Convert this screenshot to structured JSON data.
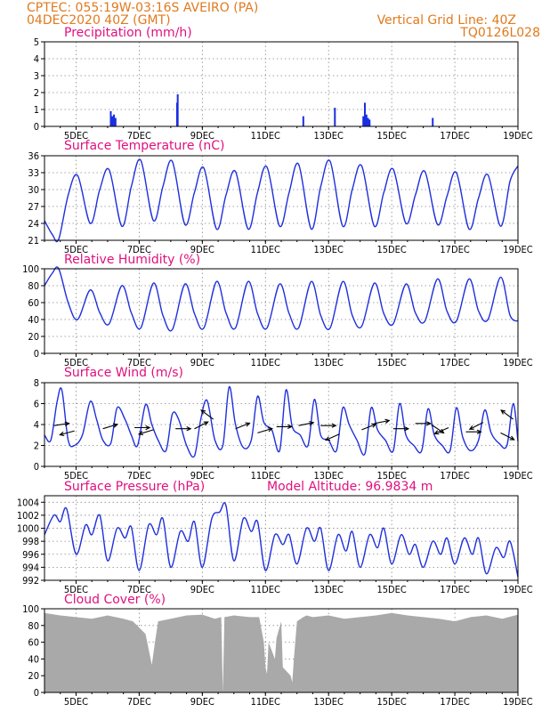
{
  "header": {
    "line1": "CPTEC:   055:19W-03:16S   AVEIRO (PA)",
    "line2": "04DEC2020 40Z (GMT)",
    "right1": "Vertical Grid Line: 40Z",
    "right2": "TQ0126L028"
  },
  "colors": {
    "header": "#e07a1e",
    "panel_title": "#e0107e",
    "series_line": "#1f2fdc",
    "precip_bar": "#1a2ee0",
    "cloud_fill": "#a9a9a9",
    "wind_arrow": "#000000"
  },
  "chart_data": [
    {
      "id": "precipitation",
      "type": "bar",
      "title": "Precipitation (mm/h)",
      "ylim": [
        0,
        5
      ],
      "yticks": [
        0,
        1,
        2,
        3,
        4,
        5
      ],
      "xlim": [
        4.0,
        19.0
      ],
      "xticks": [
        5,
        7,
        9,
        11,
        13,
        15,
        17,
        19
      ],
      "xticklabels": [
        "5DEC",
        "7DEC",
        "9DEC",
        "11DEC",
        "13DEC",
        "15DEC",
        "17DEC",
        "19DEC"
      ],
      "grid": true,
      "x": [
        6.1,
        6.15,
        6.2,
        6.25,
        8.2,
        8.22,
        12.2,
        13.2,
        14.1,
        14.15,
        14.2,
        14.25,
        14.3,
        16.3
      ],
      "values": [
        0.9,
        0.6,
        0.7,
        0.5,
        1.4,
        1.9,
        0.6,
        1.1,
        0.6,
        1.4,
        0.7,
        0.5,
        0.4,
        0.5
      ]
    },
    {
      "id": "temperature",
      "type": "line",
      "title": "Surface Temperature (nC)",
      "ylim": [
        21,
        36
      ],
      "yticks": [
        21,
        24,
        27,
        30,
        33,
        36
      ],
      "xlim": [
        4.0,
        19.0
      ],
      "xticks": [
        5,
        7,
        9,
        11,
        13,
        15,
        17,
        19
      ],
      "xticklabels": [
        "5DEC",
        "7DEC",
        "9DEC",
        "11DEC",
        "13DEC",
        "15DEC",
        "17DEC",
        "19DEC"
      ],
      "grid": true,
      "x": [
        4.0,
        4.25,
        4.45,
        4.75,
        5.05,
        5.45,
        5.75,
        6.05,
        6.45,
        6.75,
        7.05,
        7.45,
        7.75,
        8.05,
        8.45,
        8.75,
        9.05,
        9.45,
        9.75,
        10.05,
        10.45,
        10.75,
        11.05,
        11.45,
        11.75,
        12.05,
        12.45,
        12.75,
        13.05,
        13.45,
        13.75,
        14.05,
        14.45,
        14.75,
        15.05,
        15.45,
        15.75,
        16.05,
        16.45,
        16.75,
        17.05,
        17.45,
        17.75,
        18.05,
        18.45,
        18.75,
        19.0
      ],
      "values": [
        24.5,
        22.0,
        21.2,
        29.0,
        32.5,
        24.0,
        30.0,
        33.5,
        23.5,
        30.5,
        35.2,
        24.5,
        30.5,
        35.0,
        23.8,
        29.5,
        33.8,
        23.0,
        29.0,
        33.2,
        23.0,
        29.5,
        34.0,
        23.5,
        29.5,
        34.5,
        23.0,
        30.5,
        35.0,
        23.5,
        30.0,
        34.2,
        23.5,
        29.5,
        33.6,
        24.0,
        29.0,
        33.2,
        23.8,
        28.8,
        33.0,
        23.0,
        28.5,
        32.6,
        23.5,
        31.5,
        34.2
      ]
    },
    {
      "id": "humidity",
      "type": "line",
      "title": "Relative Humidity (%)",
      "ylim": [
        0,
        100
      ],
      "yticks": [
        0,
        20,
        40,
        60,
        80,
        100
      ],
      "xlim": [
        4.0,
        19.0
      ],
      "xticks": [
        5,
        7,
        9,
        11,
        13,
        15,
        17,
        19
      ],
      "xticklabels": [
        "5DEC",
        "7DEC",
        "9DEC",
        "11DEC",
        "13DEC",
        "15DEC",
        "17DEC",
        "19DEC"
      ],
      "grid": true,
      "x": [
        4.0,
        4.25,
        4.45,
        4.75,
        5.05,
        5.45,
        5.75,
        6.05,
        6.45,
        6.75,
        7.05,
        7.45,
        7.75,
        8.05,
        8.45,
        8.75,
        9.05,
        9.45,
        9.75,
        10.05,
        10.45,
        10.75,
        11.05,
        11.45,
        11.75,
        12.05,
        12.45,
        12.75,
        13.05,
        13.45,
        13.75,
        14.05,
        14.45,
        14.75,
        15.05,
        15.45,
        15.75,
        16.05,
        16.45,
        16.75,
        17.05,
        17.45,
        17.75,
        18.05,
        18.45,
        18.75,
        19.0
      ],
      "values": [
        80,
        95,
        100,
        60,
        40,
        75,
        48,
        35,
        80,
        48,
        30,
        83,
        45,
        28,
        82,
        47,
        30,
        85,
        48,
        30,
        85,
        47,
        30,
        82,
        47,
        30,
        85,
        45,
        30,
        85,
        45,
        32,
        83,
        47,
        35,
        82,
        48,
        38,
        88,
        50,
        38,
        88,
        50,
        40,
        90,
        45,
        38
      ]
    },
    {
      "id": "wind",
      "type": "line",
      "title": "Surface Wind (m/s)",
      "ylim": [
        0,
        8
      ],
      "yticks": [
        0,
        2,
        4,
        6,
        8
      ],
      "xlim": [
        4.0,
        19.0
      ],
      "xticks": [
        5,
        7,
        9,
        11,
        13,
        15,
        17,
        19
      ],
      "xticklabels": [
        "5DEC",
        "7DEC",
        "9DEC",
        "11DEC",
        "13DEC",
        "15DEC",
        "17DEC",
        "19DEC"
      ],
      "grid": true,
      "x": [
        4.0,
        4.2,
        4.4,
        4.55,
        4.75,
        4.95,
        5.2,
        5.45,
        5.65,
        5.85,
        6.1,
        6.3,
        6.55,
        6.75,
        6.95,
        7.2,
        7.4,
        7.6,
        7.85,
        8.05,
        8.25,
        8.5,
        8.75,
        8.95,
        9.15,
        9.4,
        9.65,
        9.85,
        10.05,
        10.3,
        10.55,
        10.75,
        10.95,
        11.2,
        11.45,
        11.65,
        11.85,
        12.1,
        12.35,
        12.55,
        12.75,
        13.0,
        13.25,
        13.45,
        13.65,
        13.9,
        14.15,
        14.35,
        14.55,
        14.8,
        15.05,
        15.25,
        15.45,
        15.7,
        15.95,
        16.15,
        16.35,
        16.6,
        16.85,
        17.05,
        17.25,
        17.5,
        17.75,
        17.95,
        18.15,
        18.4,
        18.65,
        18.85,
        19.0
      ],
      "values": [
        3.0,
        2.5,
        6.2,
        7.3,
        2.5,
        2.0,
        3.0,
        6.2,
        4.5,
        2.5,
        2.2,
        5.6,
        4.5,
        3.0,
        2.0,
        5.9,
        4.0,
        2.5,
        1.5,
        5.0,
        4.5,
        2.0,
        1.0,
        4.5,
        6.3,
        2.5,
        2.0,
        7.6,
        4.0,
        1.8,
        2.5,
        6.7,
        4.2,
        3.5,
        1.5,
        7.3,
        3.8,
        3.0,
        2.0,
        6.4,
        3.0,
        2.5,
        1.5,
        5.6,
        4.0,
        2.5,
        1.2,
        5.6,
        3.5,
        2.5,
        1.5,
        6.0,
        3.0,
        2.0,
        1.5,
        5.5,
        3.0,
        2.0,
        1.5,
        5.6,
        2.8,
        1.5,
        2.5,
        5.4,
        3.2,
        2.2,
        2.0,
        6.0,
        2.4
      ],
      "arrows": {
        "x": [
          4.3,
          4.95,
          5.85,
          6.85,
          7.45,
          8.15,
          8.75,
          9.35,
          10.05,
          10.75,
          11.35,
          12.05,
          12.75,
          13.35,
          14.05,
          14.45,
          15.05,
          15.75,
          16.25,
          16.8,
          17.35,
          17.9,
          18.45,
          18.85
        ],
        "y": [
          3.9,
          3.4,
          3.6,
          3.7,
          3.5,
          3.6,
          3.6,
          4.5,
          3.6,
          3.2,
          3.8,
          3.9,
          3.9,
          3.1,
          3.5,
          4.1,
          3.6,
          4.1,
          4.0,
          3.7,
          3.3,
          4.2,
          3.2,
          4.5
        ],
        "u": [
          1.0,
          -0.9,
          1.0,
          1.0,
          -1.0,
          1.0,
          1.0,
          -0.8,
          1.0,
          1.0,
          1.0,
          1.0,
          1.0,
          -0.9,
          1.0,
          1.0,
          1.0,
          1.0,
          0.9,
          -0.9,
          1.0,
          -1.0,
          1.0,
          -0.8
        ],
        "v": [
          0.15,
          -0.25,
          0.3,
          0.0,
          -0.3,
          0.0,
          0.5,
          0.6,
          0.4,
          0.3,
          0.0,
          0.2,
          0.0,
          -0.4,
          0.4,
          0.2,
          0.0,
          0.0,
          -0.6,
          -0.4,
          0.0,
          -0.5,
          -0.5,
          0.6
        ]
      }
    },
    {
      "id": "pressure",
      "type": "line",
      "title": "Surface Pressure (hPa)",
      "annotation": "Model Altitude: 96.9834 m",
      "ylim": [
        992,
        1005
      ],
      "yticks": [
        992,
        994,
        996,
        998,
        1000,
        1002,
        1004
      ],
      "xlim": [
        4.0,
        19.0
      ],
      "xticks": [
        5,
        7,
        9,
        11,
        13,
        15,
        17,
        19
      ],
      "xticklabels": [
        "5DEC",
        "7DEC",
        "9DEC",
        "11DEC",
        "13DEC",
        "15DEC",
        "17DEC",
        "19DEC"
      ],
      "grid": true,
      "x": [
        4.0,
        4.3,
        4.5,
        4.7,
        5.0,
        5.3,
        5.5,
        5.75,
        6.0,
        6.3,
        6.55,
        6.75,
        7.0,
        7.3,
        7.55,
        7.75,
        8.0,
        8.3,
        8.55,
        8.75,
        9.0,
        9.3,
        9.55,
        9.75,
        10.0,
        10.3,
        10.55,
        10.75,
        11.0,
        11.3,
        11.55,
        11.75,
        12.0,
        12.3,
        12.55,
        12.75,
        13.0,
        13.3,
        13.55,
        13.75,
        14.0,
        14.3,
        14.55,
        14.75,
        15.0,
        15.3,
        15.55,
        15.75,
        16.0,
        16.3,
        16.55,
        16.75,
        17.0,
        17.3,
        17.55,
        17.75,
        18.0,
        18.3,
        18.55,
        18.75,
        19.0
      ],
      "values": [
        999.0,
        1002.0,
        1001.0,
        1003.0,
        996.0,
        1000.5,
        999.0,
        1002.0,
        995.0,
        1000.0,
        998.5,
        1000.2,
        993.5,
        1000.5,
        999.0,
        1001.5,
        994.0,
        999.5,
        998.0,
        1001.0,
        994.0,
        1001.5,
        1002.5,
        1003.5,
        995.0,
        1001.5,
        999.5,
        1001.0,
        993.5,
        999.0,
        997.5,
        999.0,
        994.5,
        1000.0,
        998.0,
        1000.0,
        993.5,
        999.0,
        996.5,
        999.5,
        994.0,
        999.0,
        997.0,
        1000.0,
        994.5,
        999.0,
        996.0,
        997.5,
        994.0,
        998.0,
        996.0,
        998.5,
        994.5,
        998.5,
        996.0,
        998.5,
        993.0,
        997.0,
        995.5,
        998.0,
        992.5
      ]
    },
    {
      "id": "cloud",
      "type": "area",
      "title": "Cloud Cover (%)",
      "ylim": [
        0,
        100
      ],
      "yticks": [
        0,
        20,
        40,
        60,
        80,
        100
      ],
      "xlim": [
        4.0,
        19.0
      ],
      "xticks": [
        5,
        7,
        9,
        11,
        13,
        15,
        17,
        19
      ],
      "xticklabels": [
        "5DEC",
        "7DEC",
        "9DEC",
        "11DEC",
        "13DEC",
        "15DEC",
        "17DEC",
        "19DEC"
      ],
      "grid": true,
      "x": [
        4.0,
        4.5,
        5.0,
        5.5,
        6.0,
        6.5,
        6.8,
        7.2,
        7.4,
        7.5,
        7.6,
        8.0,
        8.5,
        9.0,
        9.4,
        9.6,
        9.65,
        9.7,
        10.0,
        10.5,
        10.8,
        10.95,
        11.0,
        11.05,
        11.1,
        11.3,
        11.35,
        11.5,
        11.55,
        11.8,
        11.85,
        11.9,
        12.0,
        12.2,
        12.3,
        12.5,
        13.0,
        13.5,
        14.0,
        14.5,
        15.0,
        15.5,
        16.0,
        16.5,
        17.0,
        17.5,
        18.0,
        18.5,
        19.0
      ],
      "values": [
        95,
        92,
        90,
        88,
        92,
        88,
        85,
        70,
        33,
        60,
        85,
        88,
        92,
        93,
        88,
        90,
        0,
        90,
        92,
        90,
        90,
        60,
        30,
        22,
        60,
        40,
        65,
        85,
        30,
        20,
        12,
        40,
        85,
        90,
        92,
        90,
        92,
        88,
        90,
        92,
        95,
        92,
        90,
        88,
        85,
        90,
        92,
        88,
        93
      ]
    }
  ]
}
